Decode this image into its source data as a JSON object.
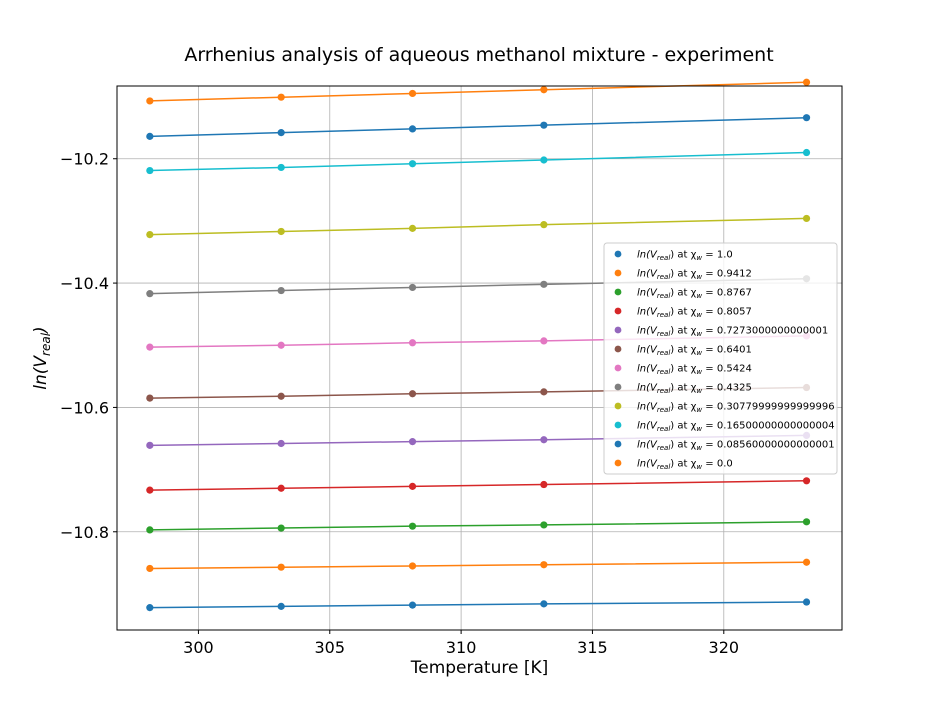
{
  "chart_data": {
    "type": "line",
    "title": "Arrhenius analysis of aqueous methanol mixture - experiment",
    "xlabel": "Temperature [K]",
    "ylabel_base": "ln(V",
    "ylabel_sub": "real",
    "ylabel_close": ")",
    "xlim": [
      296.9,
      324.5
    ],
    "ylim": [
      -10.958,
      -10.083
    ],
    "x_ticks": [
      300,
      305,
      310,
      315,
      320
    ],
    "y_ticks": [
      -10.8,
      -10.6,
      -10.4,
      -10.2
    ],
    "y_tick_labels": [
      "−10.8",
      "−10.6",
      "−10.4",
      "−10.2"
    ],
    "x": [
      298.15,
      303.15,
      308.15,
      313.15,
      323.15
    ],
    "grid": true,
    "legend_position": "center-right",
    "series": [
      {
        "name": "1.0",
        "color": "#1f77b4",
        "values": [
          -10.922,
          -10.92,
          -10.918,
          -10.916,
          -10.913
        ]
      },
      {
        "name": "0.9412",
        "color": "#ff7f0e",
        "values": [
          -10.859,
          -10.857,
          -10.855,
          -10.853,
          -10.849
        ]
      },
      {
        "name": "0.8767",
        "color": "#2ca02c",
        "values": [
          -10.797,
          -10.794,
          -10.791,
          -10.789,
          -10.784
        ]
      },
      {
        "name": "0.8057",
        "color": "#d62728",
        "values": [
          -10.733,
          -10.73,
          -10.727,
          -10.724,
          -10.718
        ]
      },
      {
        "name": "0.7273000000000001",
        "color": "#9467bd",
        "values": [
          -10.661,
          -10.658,
          -10.655,
          -10.652,
          -10.645
        ]
      },
      {
        "name": "0.6401",
        "color": "#8c564b",
        "values": [
          -10.585,
          -10.582,
          -10.578,
          -10.575,
          -10.568
        ]
      },
      {
        "name": "0.5424",
        "color": "#e377c2",
        "values": [
          -10.503,
          -10.5,
          -10.496,
          -10.493,
          -10.485
        ]
      },
      {
        "name": "0.4325",
        "color": "#7f7f7f",
        "values": [
          -10.417,
          -10.412,
          -10.407,
          -10.402,
          -10.393
        ]
      },
      {
        "name": "0.30779999999999996",
        "color": "#bcbd22",
        "values": [
          -10.322,
          -10.317,
          -10.312,
          -10.306,
          -10.296
        ]
      },
      {
        "name": "0.16500000000000004",
        "color": "#17becf",
        "values": [
          -10.219,
          -10.214,
          -10.208,
          -10.202,
          -10.19
        ]
      },
      {
        "name": "0.08560000000000001",
        "color": "#1f77b4",
        "values": [
          -10.164,
          -10.158,
          -10.152,
          -10.146,
          -10.134
        ]
      },
      {
        "name": "0.0",
        "color": "#ff7f0e",
        "values": [
          -10.107,
          -10.101,
          -10.095,
          -10.089,
          -10.077
        ]
      }
    ]
  },
  "legend": {
    "label_prefix": "ln(V",
    "label_sub": "real",
    "label_mid": ") at χ",
    "chi_sub": "w",
    "label_eq": " = "
  }
}
